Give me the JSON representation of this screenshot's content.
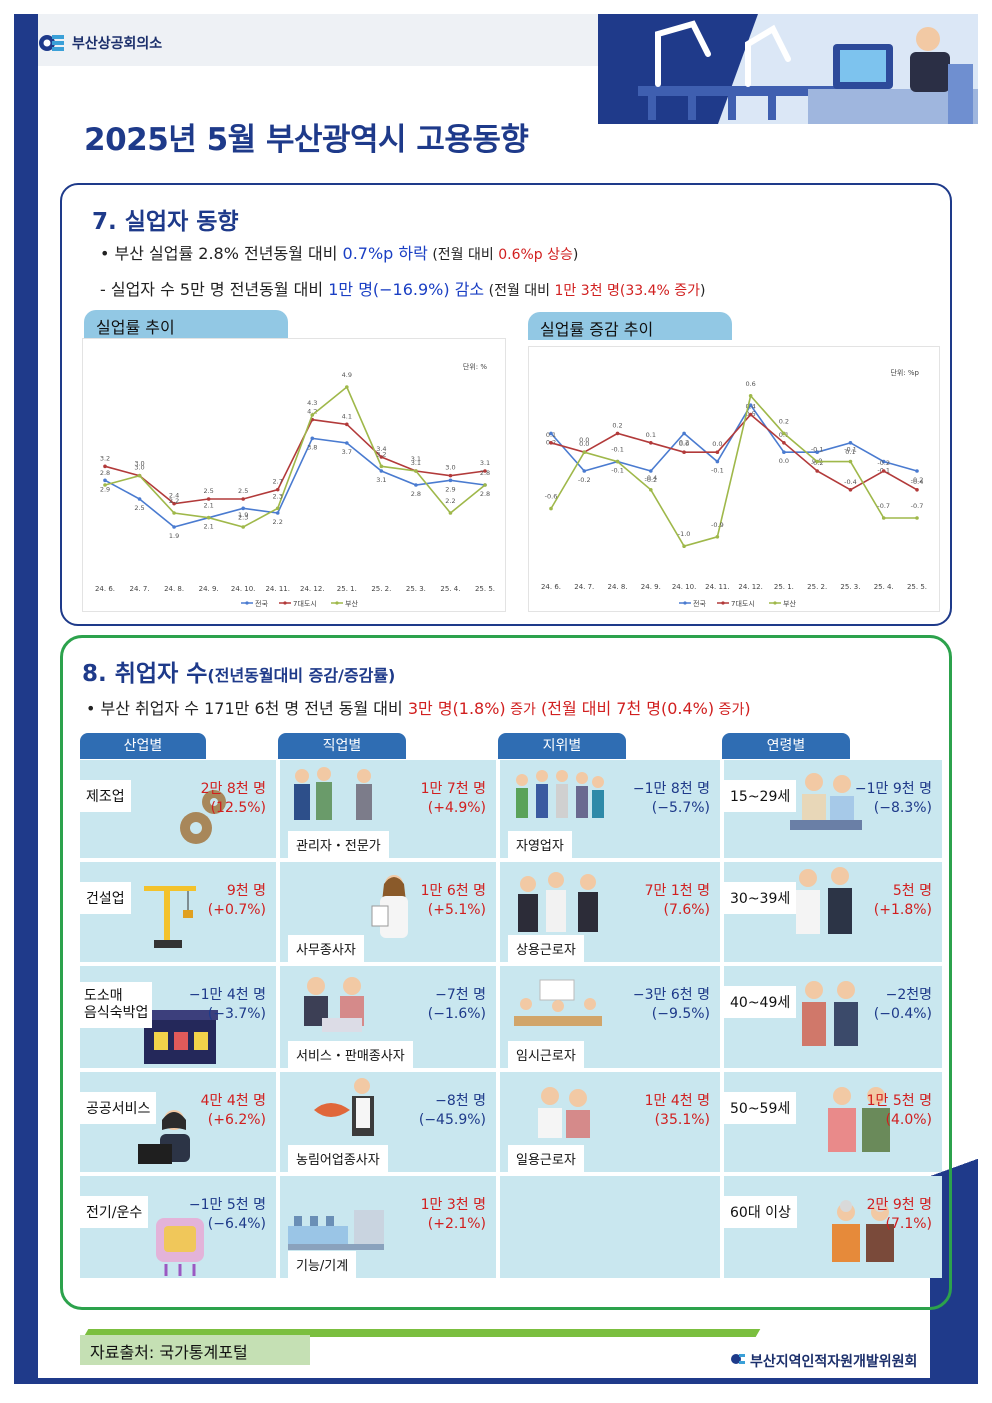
{
  "header": {
    "org_name": "부산상공회의소",
    "title": "2025년 5월 부산광역시 고용동향"
  },
  "section7": {
    "title": "7. 실업자 동향",
    "b1_a": "• 부산 실업률 2.8% 전년동월 대비 ",
    "b1_b": "0.7%p 하락",
    "b1_c": " (전월 대비 ",
    "b1_d": "0.6%p 상승",
    "b1_e": ")",
    "b2_a": "- 실업자 수 5만 명 전년동월 대비 ",
    "b2_b": "1만 명(−16.9%) 감소",
    "b2_c": " (전월 대비 ",
    "b2_d": "1만 3천 명(33.4% 증가",
    "b2_e": ")",
    "chart1_tab": "실업률 추이",
    "chart2_tab": "실업률 증감 추이"
  },
  "chart_data": [
    {
      "type": "line",
      "title": "실업률 추이",
      "unit": "단위: %",
      "categories": [
        "24. 6.",
        "24. 7.",
        "24. 8.",
        "24. 9.",
        "24. 10.",
        "24. 11.",
        "24. 12.",
        "25. 1.",
        "25. 2.",
        "25. 3.",
        "25. 4.",
        "25. 5."
      ],
      "ylim": [
        1.0,
        5.5
      ],
      "series": [
        {
          "name": "전국",
          "color": "#4a7bd0",
          "values": [
            2.9,
            2.5,
            1.9,
            2.1,
            2.3,
            2.2,
            3.8,
            3.7,
            3.1,
            2.8,
            2.9,
            2.8
          ]
        },
        {
          "name": "7대도시",
          "color": "#b23a3a",
          "values": [
            3.2,
            3.0,
            2.4,
            2.5,
            2.5,
            2.7,
            4.2,
            4.1,
            3.4,
            3.1,
            3.0,
            3.1
          ]
        },
        {
          "name": "부산",
          "color": "#9fb84a",
          "values": [
            2.8,
            3.0,
            2.2,
            2.1,
            1.9,
            2.3,
            4.3,
            4.9,
            3.2,
            3.1,
            2.2,
            2.8
          ]
        }
      ]
    },
    {
      "type": "line",
      "title": "실업률 증감 추이",
      "unit": "단위: %p",
      "categories": [
        "24. 6.",
        "24. 7.",
        "24. 8.",
        "24. 9.",
        "24. 10.",
        "24. 11.",
        "24. 12.",
        "25. 1.",
        "25. 2.",
        "25. 3.",
        "25. 4.",
        "25. 5."
      ],
      "ylim": [
        -1.2,
        0.8
      ],
      "series": [
        {
          "name": "전국",
          "color": "#4a7bd0",
          "values": [
            0.2,
            -0.2,
            -0.1,
            -0.2,
            0.2,
            -0.1,
            0.5,
            0.0,
            0.0,
            0.1,
            -0.1,
            -0.2
          ]
        },
        {
          "name": "7대도시",
          "color": "#b23a3a",
          "values": [
            0.1,
            0.0,
            0.2,
            0.1,
            0.0,
            0.0,
            0.4,
            0.1,
            -0.2,
            -0.4,
            -0.2,
            -0.4
          ]
        },
        {
          "name": "부산",
          "color": "#9fb84a",
          "values": [
            -0.6,
            0.0,
            -0.1,
            -0.4,
            -1.0,
            -0.9,
            0.6,
            0.2,
            -0.1,
            -0.1,
            -0.7,
            -0.7
          ]
        }
      ]
    }
  ],
  "section8": {
    "title": "8. 취업자 수",
    "title_sub": "(전년동월대비 증감/증감률)",
    "b1_a": "• 부산 취업자 수 171만 6천 명 전년 동월 대비 ",
    "b1_b": "3만 명(1.8%)",
    "b1_c": " 증가",
    "b1_d": " (전월 대비 7천 명(0.4%)",
    "b1_e": " 증가",
    "b1_f": ")",
    "groups": [
      "산업별",
      "직업별",
      "지위별",
      "연령별"
    ],
    "industry": [
      {
        "label": "제조업",
        "v1": "2만 8천 명",
        "v2": "(12.5%)",
        "icon": "gears-icon",
        "color": "#d11f1f"
      },
      {
        "label": "건설업",
        "v1": "9천 명",
        "v2": "(+0.7%)",
        "icon": "crane-icon",
        "color": "#d11f1f"
      },
      {
        "label": "도소매\n음식숙박업",
        "v1": "−1만 4천 명",
        "v2": "(−3.7%)",
        "icon": "shop-icon",
        "color": "#1e3a8a"
      },
      {
        "label": "공공서비스",
        "v1": "4만 4천 명",
        "v2": "(+6.2%)",
        "icon": "office-worker-icon",
        "color": "#d11f1f"
      },
      {
        "label": "전기/운수",
        "v1": "−1만 5천 명",
        "v2": "(−6.4%)",
        "icon": "electric-icon",
        "color": "#1e3a8a"
      }
    ],
    "occupation": [
      {
        "label": "관리자・전문가",
        "v1": "1만 7천 명",
        "v2": "(+4.9%)",
        "icon": "professionals-icon",
        "color": "#d11f1f"
      },
      {
        "label": "사무종사자",
        "v1": "1만 6천 명",
        "v2": "(+5.1%)",
        "icon": "clerk-icon",
        "color": "#d11f1f"
      },
      {
        "label": "서비스・판매종사자",
        "v1": "−7천 명",
        "v2": "(−1.6%)",
        "icon": "service-icon",
        "color": "#1e3a8a"
      },
      {
        "label": "농림어업종사자",
        "v1": "−8천 명",
        "v2": "(−45.9%)",
        "icon": "fisherman-icon",
        "color": "#1e3a8a"
      },
      {
        "label": "기능/기계",
        "v1": "1만  3천 명",
        "v2": "(+2.1%)",
        "icon": "factory-icon",
        "color": "#d11f1f"
      }
    ],
    "status": [
      {
        "label": "자영업자",
        "v1": "−1만 8천 명",
        "v2": "(−5.7%)",
        "icon": "self-employed-icon",
        "color": "#1e3a8a"
      },
      {
        "label": "상용근로자",
        "v1": "7만 1천 명",
        "v2": "(7.6%)",
        "icon": "regular-workers-icon",
        "color": "#d11f1f"
      },
      {
        "label": "임시근로자",
        "v1": "−3만 6천 명",
        "v2": "(−9.5%)",
        "icon": "meeting-icon",
        "color": "#1e3a8a"
      },
      {
        "label": "일용근로자",
        "v1": "1만 4천 명",
        "v2": "(35.1%)",
        "icon": "day-workers-icon",
        "color": "#d11f1f"
      }
    ],
    "age": [
      {
        "label": "15~29세",
        "v1": "−1만 9천 명",
        "v2": "(−8.3%)",
        "icon": "youth-icon",
        "color": "#1e3a8a"
      },
      {
        "label": "30~39세",
        "v1": "5천 명",
        "v2": "(+1.8%)",
        "icon": "thirties-icon",
        "color": "#d11f1f"
      },
      {
        "label": "40~49세",
        "v1": "−2천명",
        "v2": "(−0.4%)",
        "icon": "forties-icon",
        "color": "#1e3a8a"
      },
      {
        "label": "50~59세",
        "v1": "1만 5천 명",
        "v2": "(4.0%)",
        "icon": "fifties-icon",
        "color": "#d11f1f"
      },
      {
        "label": "60대 이상",
        "v1": "2만 9천 명",
        "v2": "(7.1%)",
        "icon": "seniors-icon",
        "color": "#d11f1f"
      }
    ]
  },
  "footer": {
    "source": "자료출처: 국가통계포털",
    "org": "부산지역인적자원개발위원회"
  }
}
